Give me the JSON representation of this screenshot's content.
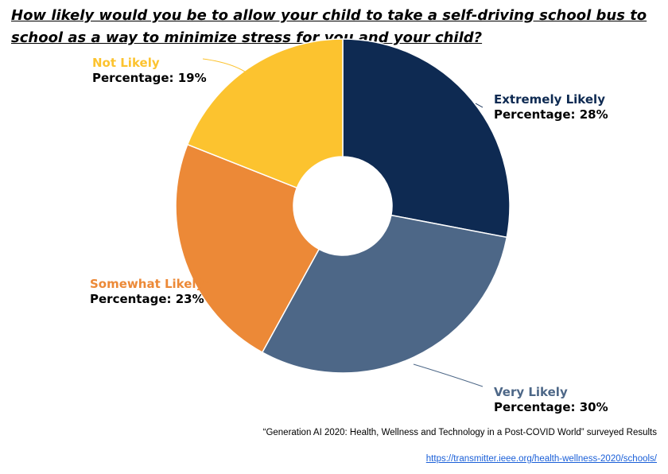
{
  "chart_data": {
    "type": "pie",
    "donut": true,
    "title": "How likely would you be to allow your child to take a self-driving school bus to school as a way to minimize stress for you and your child?",
    "value_label": "Percentage",
    "unit": "%",
    "slices": [
      {
        "label": "Extremely Likely",
        "value": 28,
        "color": "#0e2a52",
        "label_color": "#0e2a52"
      },
      {
        "label": "Very Likely",
        "value": 30,
        "color": "#4d6787",
        "label_color": "#4d6787"
      },
      {
        "label": "Somewhat Likely",
        "value": 23,
        "color": "#ec8937",
        "label_color": "#ec8937"
      },
      {
        "label": "Not Likely",
        "value": 19,
        "color": "#fcc32f",
        "label_color": "#fcc32f"
      }
    ]
  },
  "source": "“Generation AI 2020: Health, Wellness and Technology in a Post-COVID World” surveyed Results",
  "link": "https://transmitter.ieee.org/health-wellness-2020/schools/"
}
